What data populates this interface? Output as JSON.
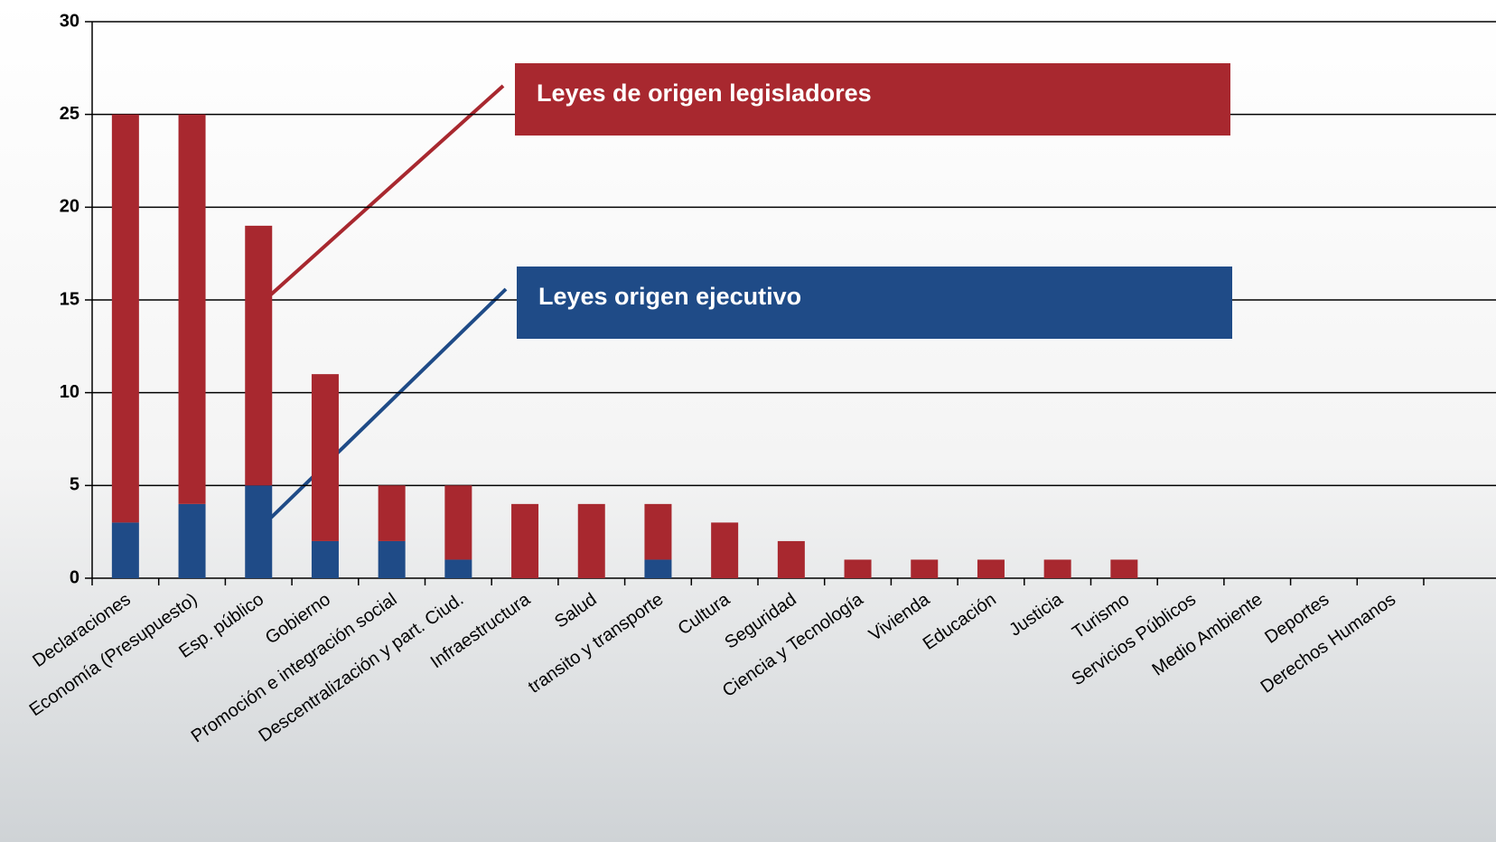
{
  "chart_data": {
    "type": "stacked_bar",
    "categories": [
      "Declaraciones",
      "Economía (Presupuesto)",
      "Esp. público",
      "Gobierno",
      "Promoción e integración social",
      "Descentralización y part. Ciud.",
      "Infraestructura",
      "Salud",
      "transito y transporte",
      "Cultura",
      "Seguridad",
      "Ciencia y Tecnología",
      "Vivienda",
      "Educación",
      "Justicia",
      "Turismo",
      "Servicios Públicos",
      "Medio Ambiente",
      "Deportes",
      "Derechos Humanos"
    ],
    "series": [
      {
        "name": "Leyes origen ejecutivo",
        "color": "#1f4b87",
        "values": [
          3,
          4,
          5,
          2,
          2,
          1,
          0,
          0,
          1,
          0,
          0,
          0,
          0,
          0,
          0,
          0,
          0,
          0,
          0,
          0
        ]
      },
      {
        "name": "Leyes de origen legisladores",
        "color": "#a8282f",
        "values": [
          22,
          21,
          14,
          9,
          3,
          4,
          4,
          4,
          3,
          3,
          2,
          1,
          1,
          1,
          1,
          1,
          0,
          0,
          0,
          0
        ]
      }
    ],
    "ylim": [
      0,
      30
    ],
    "yticks": [
      0,
      5,
      10,
      15,
      20,
      25,
      30
    ],
    "grid": true
  }
}
